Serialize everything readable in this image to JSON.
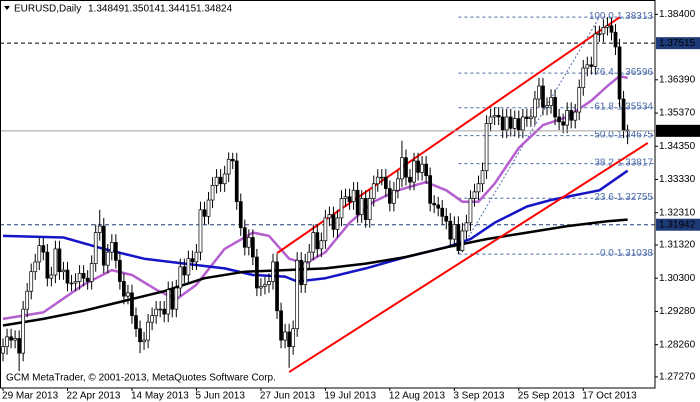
{
  "chart_data": {
    "type": "candlestick",
    "symbol_label": "EURUSD,Daily",
    "copyright": "GCM MetaTrader, © 2001-2013, MetaQuotes Software Corp.",
    "candle_colors": {
      "up": "#ffffff",
      "down": "#000000",
      "wick": "#000000"
    },
    "xlim": [
      -0.75,
      161.8
    ],
    "ylim": [
      1.2693,
      1.3884
    ],
    "xticks": [
      {
        "value": 0,
        "label": "29 Mar 2013"
      },
      {
        "value": 16,
        "label": "22 Apr 2013"
      },
      {
        "value": 32,
        "label": "14 May 2013"
      },
      {
        "value": 48,
        "label": "5 Jun 2013"
      },
      {
        "value": 64,
        "label": "27 Jun 2013"
      },
      {
        "value": 80,
        "label": "19 Jul 2013"
      },
      {
        "value": 96,
        "label": "12 Aug 2013"
      },
      {
        "value": 112,
        "label": "3 Sep 2013"
      },
      {
        "value": 128,
        "label": "25 Sep 2013"
      },
      {
        "value": 144,
        "label": "17 Oct 2013"
      }
    ],
    "yticks": [
      {
        "value": 1.384,
        "label": "1.38400"
      },
      {
        "value": 1.3639,
        "label": "1.36390"
      },
      {
        "value": 1.3537,
        "label": "1.35370"
      },
      {
        "value": 1.3435,
        "label": "1.34350"
      },
      {
        "value": 1.3333,
        "label": "1.33330"
      },
      {
        "value": 1.3231,
        "label": "1.32310"
      },
      {
        "value": 1.3132,
        "label": "1.31320"
      },
      {
        "value": 1.303,
        "label": "1.30300"
      },
      {
        "value": 1.2928,
        "label": "1.29280"
      },
      {
        "value": 1.2826,
        "label": "1.28260"
      },
      {
        "value": 1.2727,
        "label": "1.27270"
      }
    ],
    "ohlc": [
      [
        1.28,
        1.2845,
        1.2775,
        1.282
      ],
      [
        1.282,
        1.2875,
        1.2795,
        1.285
      ],
      [
        1.285,
        1.2875,
        1.2815,
        1.284
      ],
      [
        1.284,
        1.287,
        1.2815,
        1.2845
      ],
      [
        1.2845,
        1.287,
        1.2745,
        1.28
      ],
      [
        1.28,
        1.296,
        1.2775,
        1.2935
      ],
      [
        1.2935,
        1.3015,
        1.291,
        1.299
      ],
      [
        1.299,
        1.3075,
        1.2965,
        1.305
      ],
      [
        1.305,
        1.3105,
        1.3025,
        1.308
      ],
      [
        1.308,
        1.3155,
        1.3055,
        1.313
      ],
      [
        1.313,
        1.3155,
        1.3085,
        1.311
      ],
      [
        1.311,
        1.3135,
        1.3005,
        1.303
      ],
      [
        1.303,
        1.3065,
        1.3005,
        1.304
      ],
      [
        1.304,
        1.3145,
        1.3015,
        1.312
      ],
      [
        1.312,
        1.3145,
        1.3025,
        1.305
      ],
      [
        1.305,
        1.308,
        1.3025,
        1.3055
      ],
      [
        1.3055,
        1.308,
        1.299,
        1.3015
      ],
      [
        1.3015,
        1.304,
        1.299,
        1.3015
      ],
      [
        1.3015,
        1.3045,
        1.299,
        1.302
      ],
      [
        1.302,
        1.307,
        1.2995,
        1.3045
      ],
      [
        1.3045,
        1.307,
        1.3005,
        1.303
      ],
      [
        1.303,
        1.3055,
        1.2995,
        1.302
      ],
      [
        1.302,
        1.31,
        1.2995,
        1.3075
      ],
      [
        1.3075,
        1.3195,
        1.305,
        1.317
      ],
      [
        1.317,
        1.324,
        1.3145,
        1.319
      ],
      [
        1.319,
        1.3215,
        1.3045,
        1.307
      ],
      [
        1.307,
        1.3135,
        1.3045,
        1.311
      ],
      [
        1.311,
        1.3165,
        1.3085,
        1.314
      ],
      [
        1.314,
        1.3165,
        1.306,
        1.3085
      ],
      [
        1.3085,
        1.311,
        1.2995,
        1.302
      ],
      [
        1.302,
        1.3045,
        1.295,
        1.2975
      ],
      [
        1.2975,
        1.301,
        1.295,
        1.2985
      ],
      [
        1.2985,
        1.301,
        1.289,
        1.2915
      ],
      [
        1.2915,
        1.294,
        1.285,
        1.2875
      ],
      [
        1.2875,
        1.29,
        1.28,
        1.2835
      ],
      [
        1.2835,
        1.2865,
        1.281,
        1.284
      ],
      [
        1.284,
        1.292,
        1.2815,
        1.2895
      ],
      [
        1.2895,
        1.294,
        1.287,
        1.2915
      ],
      [
        1.2915,
        1.296,
        1.289,
        1.2935
      ],
      [
        1.2935,
        1.296,
        1.291,
        1.2935
      ],
      [
        1.2935,
        1.296,
        1.2895,
        1.292
      ],
      [
        1.292,
        1.302,
        1.2895,
        1.2995
      ],
      [
        1.2995,
        1.302,
        1.291,
        1.2935
      ],
      [
        1.2935,
        1.3025,
        1.291,
        1.3
      ],
      [
        1.3,
        1.309,
        1.2975,
        1.3065
      ],
      [
        1.3065,
        1.309,
        1.3015,
        1.304
      ],
      [
        1.304,
        1.3115,
        1.3015,
        1.309
      ],
      [
        1.309,
        1.3115,
        1.3055,
        1.308
      ],
      [
        1.308,
        1.3135,
        1.3055,
        1.311
      ],
      [
        1.311,
        1.3265,
        1.3085,
        1.324
      ],
      [
        1.324,
        1.3265,
        1.3195,
        1.322
      ],
      [
        1.322,
        1.3295,
        1.3195,
        1.327
      ],
      [
        1.327,
        1.334,
        1.3245,
        1.3315
      ],
      [
        1.3315,
        1.3365,
        1.329,
        1.334
      ],
      [
        1.334,
        1.3365,
        1.3295,
        1.332
      ],
      [
        1.332,
        1.3375,
        1.3295,
        1.335
      ],
      [
        1.335,
        1.3416,
        1.3325,
        1.3395
      ],
      [
        1.3395,
        1.3415,
        1.3365,
        1.339
      ],
      [
        1.339,
        1.3415,
        1.324,
        1.3265
      ],
      [
        1.3265,
        1.329,
        1.316,
        1.3185
      ],
      [
        1.3185,
        1.321,
        1.31,
        1.3125
      ],
      [
        1.3125,
        1.318,
        1.31,
        1.3155
      ],
      [
        1.3155,
        1.318,
        1.307,
        1.3095
      ],
      [
        1.3095,
        1.312,
        1.2975,
        1.3
      ],
      [
        1.3,
        1.303,
        1.2975,
        1.3005
      ],
      [
        1.3005,
        1.3035,
        1.298,
        1.301
      ],
      [
        1.301,
        1.3045,
        1.2985,
        1.302
      ],
      [
        1.302,
        1.3105,
        1.2995,
        1.308
      ],
      [
        1.308,
        1.3105,
        1.2905,
        1.293
      ],
      [
        1.293,
        1.2955,
        1.2815,
        1.284
      ],
      [
        1.284,
        1.289,
        1.2815,
        1.2865
      ],
      [
        1.2865,
        1.289,
        1.2755,
        1.282
      ],
      [
        1.282,
        1.29,
        1.2795,
        1.2875
      ],
      [
        1.2875,
        1.311,
        1.285,
        1.3085
      ],
      [
        1.3085,
        1.311,
        1.2985,
        1.301
      ],
      [
        1.301,
        1.3105,
        1.2985,
        1.308
      ],
      [
        1.308,
        1.3135,
        1.3055,
        1.311
      ],
      [
        1.311,
        1.3195,
        1.3085,
        1.317
      ],
      [
        1.317,
        1.3195,
        1.3095,
        1.312
      ],
      [
        1.312,
        1.317,
        1.3095,
        1.3145
      ],
      [
        1.3145,
        1.324,
        1.312,
        1.3215
      ],
      [
        1.3215,
        1.325,
        1.319,
        1.3225
      ],
      [
        1.3225,
        1.325,
        1.3155,
        1.318
      ],
      [
        1.318,
        1.324,
        1.3155,
        1.3215
      ],
      [
        1.3215,
        1.33,
        1.319,
        1.3275
      ],
      [
        1.3275,
        1.3305,
        1.325,
        1.328
      ],
      [
        1.328,
        1.3305,
        1.324,
        1.3265
      ],
      [
        1.3265,
        1.3325,
        1.324,
        1.33
      ],
      [
        1.33,
        1.3325,
        1.32,
        1.3225
      ],
      [
        1.3225,
        1.33,
        1.32,
        1.3275
      ],
      [
        1.3275,
        1.33,
        1.3185,
        1.321
      ],
      [
        1.321,
        1.33,
        1.3185,
        1.3275
      ],
      [
        1.3275,
        1.3345,
        1.325,
        1.332
      ],
      [
        1.332,
        1.3365,
        1.3295,
        1.334
      ],
      [
        1.334,
        1.3365,
        1.3315,
        1.334
      ],
      [
        1.334,
        1.3365,
        1.328,
        1.3305
      ],
      [
        1.3305,
        1.333,
        1.3235,
        1.326
      ],
      [
        1.326,
        1.3325,
        1.3235,
        1.33
      ],
      [
        1.33,
        1.336,
        1.3275,
        1.3335
      ],
      [
        1.3335,
        1.3452,
        1.331,
        1.34
      ],
      [
        1.34,
        1.3425,
        1.3315,
        1.334
      ],
      [
        1.334,
        1.3365,
        1.33,
        1.3325
      ],
      [
        1.3325,
        1.3415,
        1.33,
        1.339
      ],
      [
        1.339,
        1.3415,
        1.333,
        1.3355
      ],
      [
        1.3355,
        1.3405,
        1.333,
        1.338
      ],
      [
        1.338,
        1.3405,
        1.332,
        1.3345
      ],
      [
        1.3345,
        1.337,
        1.3235,
        1.326
      ],
      [
        1.326,
        1.3285,
        1.323,
        1.3255
      ],
      [
        1.3255,
        1.328,
        1.322,
        1.3245
      ],
      [
        1.3245,
        1.327,
        1.3195,
        1.322
      ],
      [
        1.322,
        1.3245,
        1.318,
        1.3205
      ],
      [
        1.3205,
        1.323,
        1.3125,
        1.315
      ],
      [
        1.315,
        1.322,
        1.3125,
        1.3195
      ],
      [
        1.3195,
        1.322,
        1.3104,
        1.3115
      ],
      [
        1.3115,
        1.32,
        1.311,
        1.3175
      ],
      [
        1.3175,
        1.3225,
        1.315,
        1.32
      ],
      [
        1.32,
        1.33,
        1.3175,
        1.3275
      ],
      [
        1.3275,
        1.332,
        1.325,
        1.3295
      ],
      [
        1.3295,
        1.3345,
        1.327,
        1.332
      ],
      [
        1.332,
        1.3385,
        1.3295,
        1.336
      ],
      [
        1.336,
        1.353,
        1.3335,
        1.3505
      ],
      [
        1.3505,
        1.355,
        1.348,
        1.3525
      ],
      [
        1.3525,
        1.3555,
        1.35,
        1.353
      ],
      [
        1.353,
        1.3555,
        1.35,
        1.3525
      ],
      [
        1.3525,
        1.355,
        1.346,
        1.3485
      ],
      [
        1.3485,
        1.355,
        1.346,
        1.3525
      ],
      [
        1.3525,
        1.355,
        1.3465,
        1.349
      ],
      [
        1.349,
        1.3545,
        1.3465,
        1.352
      ],
      [
        1.352,
        1.3545,
        1.346,
        1.3485
      ],
      [
        1.3485,
        1.355,
        1.346,
        1.3525
      ],
      [
        1.3525,
        1.355,
        1.3495,
        1.352
      ],
      [
        1.352,
        1.355,
        1.3495,
        1.3525
      ],
      [
        1.3525,
        1.3605,
        1.35,
        1.358
      ],
      [
        1.358,
        1.3645,
        1.3555,
        1.362
      ],
      [
        1.362,
        1.3645,
        1.353,
        1.3555
      ],
      [
        1.3555,
        1.3585,
        1.353,
        1.356
      ],
      [
        1.356,
        1.361,
        1.3535,
        1.3585
      ],
      [
        1.3585,
        1.361,
        1.35,
        1.3525
      ],
      [
        1.3525,
        1.355,
        1.3485,
        1.351
      ],
      [
        1.351,
        1.3535,
        1.3475,
        1.35
      ],
      [
        1.35,
        1.357,
        1.3475,
        1.3545
      ],
      [
        1.3545,
        1.357,
        1.349,
        1.3515
      ],
      [
        1.3515,
        1.3565,
        1.349,
        1.354
      ],
      [
        1.354,
        1.364,
        1.3515,
        1.3615
      ],
      [
        1.3615,
        1.37,
        1.359,
        1.3675
      ],
      [
        1.3675,
        1.371,
        1.365,
        1.3685
      ],
      [
        1.3685,
        1.371,
        1.3655,
        1.368
      ],
      [
        1.368,
        1.3805,
        1.3655,
        1.378
      ],
      [
        1.378,
        1.3805,
        1.3755,
        1.378
      ],
      [
        1.378,
        1.3825,
        1.3755,
        1.38
      ],
      [
        1.38,
        1.38313,
        1.3775,
        1.3805
      ],
      [
        1.3805,
        1.383,
        1.376,
        1.3785
      ],
      [
        1.3785,
        1.381,
        1.3715,
        1.374
      ],
      [
        1.374,
        1.3765,
        1.3555,
        1.358
      ],
      [
        1.358,
        1.3605,
        1.346,
        1.3485
      ],
      [
        1.34849,
        1.35014,
        1.34415,
        1.34824
      ]
    ],
    "series": [
      {
        "color": "#b45ecf",
        "x": [
          0,
          10,
          20,
          27,
          32,
          38,
          43,
          48,
          55,
          62,
          66,
          71,
          75,
          80,
          86,
          92,
          98,
          105,
          110,
          114,
          118,
          122,
          128,
          134,
          140,
          146,
          150,
          153,
          155
        ],
        "values": [
          1.2905,
          1.2925,
          1.301,
          1.3055,
          1.304,
          1.2995,
          1.2965,
          1.301,
          1.312,
          1.317,
          1.316,
          1.309,
          1.3075,
          1.311,
          1.32,
          1.3265,
          1.33,
          1.3325,
          1.33,
          1.3265,
          1.3265,
          1.332,
          1.343,
          1.35,
          1.3525,
          1.3575,
          1.362,
          1.365,
          1.3645
        ]
      },
      {
        "color": "#1414c8",
        "x": [
          0,
          15,
          25,
          35,
          45,
          55,
          62,
          70,
          73,
          80,
          90,
          100,
          110,
          116,
          122,
          130,
          136,
          142,
          148,
          155
        ],
        "values": [
          1.316,
          1.3155,
          1.312,
          1.309,
          1.3075,
          1.306,
          1.304,
          1.3035,
          1.302,
          1.303,
          1.306,
          1.3095,
          1.3125,
          1.315,
          1.32,
          1.325,
          1.327,
          1.3285,
          1.33,
          1.336
        ]
      },
      {
        "color": "#000000",
        "x": [
          0,
          10,
          20,
          30,
          40,
          50,
          60,
          70,
          80,
          90,
          100,
          110,
          120,
          130,
          140,
          150,
          155
        ],
        "values": [
          1.2885,
          1.2905,
          1.293,
          1.296,
          1.299,
          1.303,
          1.305,
          1.3055,
          1.306,
          1.3075,
          1.3095,
          1.3125,
          1.315,
          1.317,
          1.319,
          1.3205,
          1.321
        ]
      }
    ],
    "trendlines": [
      {
        "color": "#ff0000",
        "points": [
          [
            68,
            1.3107
          ],
          [
            153,
            1.3831
          ]
        ]
      },
      {
        "color": "#ff0000",
        "points": [
          [
            71,
            1.2742
          ],
          [
            160,
            1.3445
          ]
        ]
      }
    ],
    "fibonacci": {
      "color": "#4a6aa8",
      "x_start": 113,
      "x_end": 148,
      "levels": [
        {
          "level": "100.0",
          "value": 1.38313
        },
        {
          "level": "76.4",
          "value": 1.36596
        },
        {
          "level": "61.8",
          "value": 1.35534
        },
        {
          "level": "50.0",
          "value": 1.34675
        },
        {
          "level": "38.2",
          "value": 1.33817
        },
        {
          "level": "23.6",
          "value": 1.32755
        },
        {
          "level": "0.0",
          "value": 1.31038
        }
      ]
    },
    "hlines": [
      {
        "value": 1.37515,
        "color": "#000000",
        "label_bg": "#1e3a78"
      },
      {
        "value": 1.31942,
        "color": "#1e3a78",
        "label_bg": "#1e3a78"
      }
    ],
    "current_price_color": "#a0a0a0"
  }
}
